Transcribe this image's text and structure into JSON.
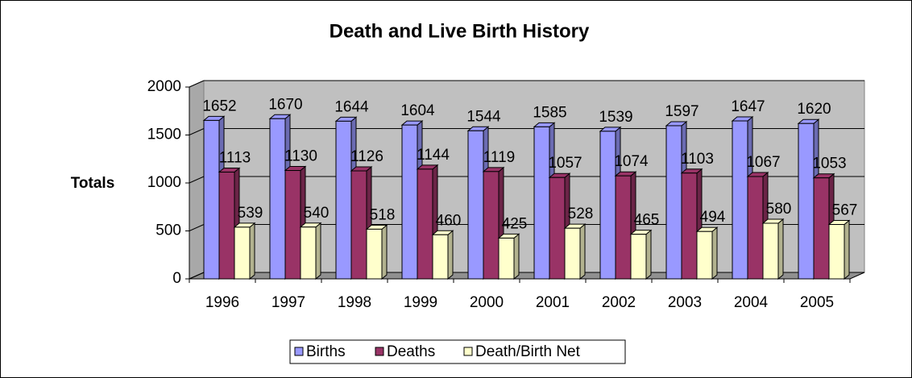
{
  "chart_data": {
    "type": "bar3d",
    "title": "Death and Live Birth History",
    "y_label": "Totals",
    "categories": [
      "1996",
      "1997",
      "1998",
      "1999",
      "2000",
      "2001",
      "2002",
      "2003",
      "2004",
      "2005"
    ],
    "series": [
      {
        "name": "Births",
        "color": "#9999ff",
        "values": [
          1652,
          1670,
          1644,
          1604,
          1544,
          1585,
          1539,
          1597,
          1647,
          1620
        ]
      },
      {
        "name": "Deaths",
        "color": "#993366",
        "values": [
          1113,
          1130,
          1126,
          1144,
          1119,
          1057,
          1074,
          1103,
          1067,
          1053
        ]
      },
      {
        "name": "Death/Birth Net",
        "color": "#ffffcc",
        "values": [
          539,
          540,
          518,
          460,
          425,
          528,
          465,
          494,
          580,
          567
        ]
      }
    ],
    "ylim": [
      0,
      2000
    ],
    "yticks": [
      0,
      500,
      1000,
      1500,
      2000
    ],
    "grid": true,
    "legend": "bottom"
  }
}
